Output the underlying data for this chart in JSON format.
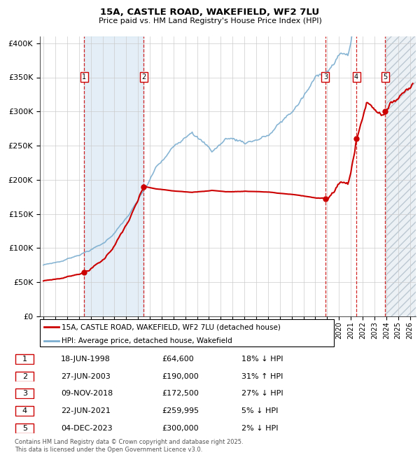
{
  "title_line1": "15A, CASTLE ROAD, WAKEFIELD, WF2 7LU",
  "title_line2": "Price paid vs. HM Land Registry's House Price Index (HPI)",
  "ylabel_ticks": [
    "£0",
    "£50K",
    "£100K",
    "£150K",
    "£200K",
    "£250K",
    "£300K",
    "£350K",
    "£400K"
  ],
  "ytick_values": [
    0,
    50000,
    100000,
    150000,
    200000,
    250000,
    300000,
    350000,
    400000
  ],
  "ylim": [
    0,
    410000
  ],
  "xlim_start": 1994.7,
  "xlim_end": 2026.5,
  "sale_dates": [
    1998.46,
    2003.49,
    2018.86,
    2021.47,
    2023.92
  ],
  "sale_prices": [
    64600,
    190000,
    172500,
    259995,
    300000
  ],
  "sale_labels": [
    "1",
    "2",
    "3",
    "4",
    "5"
  ],
  "red_line_color": "#cc0000",
  "blue_line_color": "#7aadcf",
  "sale_dot_color": "#cc0000",
  "dashed_line_color": "#cc0000",
  "bg_shade_color_12": "#d8e8f5",
  "bg_shade_color_end": "#e0e8f0",
  "legend_label_red": "15A, CASTLE ROAD, WAKEFIELD, WF2 7LU (detached house)",
  "legend_label_blue": "HPI: Average price, detached house, Wakefield",
  "table_rows": [
    [
      "1",
      "18-JUN-1998",
      "£64,600",
      "18% ↓ HPI"
    ],
    [
      "2",
      "27-JUN-2003",
      "£190,000",
      "31% ↑ HPI"
    ],
    [
      "3",
      "09-NOV-2018",
      "£172,500",
      "27% ↓ HPI"
    ],
    [
      "4",
      "22-JUN-2021",
      "£259,995",
      "5% ↓ HPI"
    ],
    [
      "5",
      "04-DEC-2023",
      "£300,000",
      "2% ↓ HPI"
    ]
  ],
  "footer_text": "Contains HM Land Registry data © Crown copyright and database right 2025.\nThis data is licensed under the Open Government Licence v3.0."
}
